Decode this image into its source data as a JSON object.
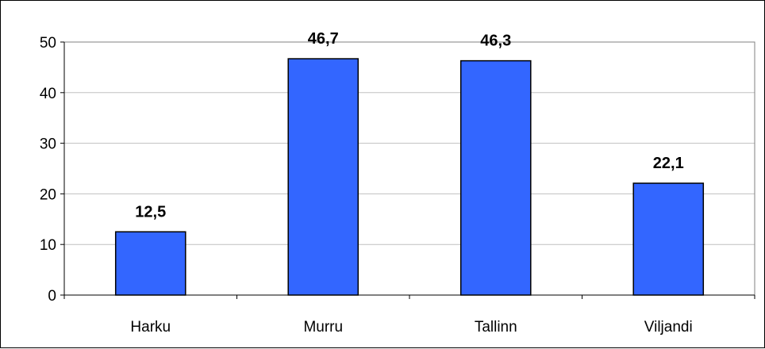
{
  "chart_data": {
    "type": "bar",
    "categories": [
      "Harku",
      "Murru",
      "Tallinn",
      "Viljandi"
    ],
    "values": [
      12.5,
      46.7,
      46.3,
      22.1
    ],
    "data_labels": [
      "12,5",
      "46,7",
      "46,3",
      "22,1"
    ],
    "y_ticks": [
      0,
      10,
      20,
      30,
      40,
      50
    ],
    "y_tick_labels": [
      "0",
      "10",
      "20",
      "30",
      "40",
      "50"
    ],
    "ylim": [
      0,
      50
    ],
    "grid": true,
    "legend": "none",
    "title": "",
    "xlabel": "",
    "ylabel": "",
    "colors": {
      "bar": "#3366FF",
      "bar_border": "#000000",
      "grid": "#C0C0C0",
      "axis": "#808080"
    }
  }
}
